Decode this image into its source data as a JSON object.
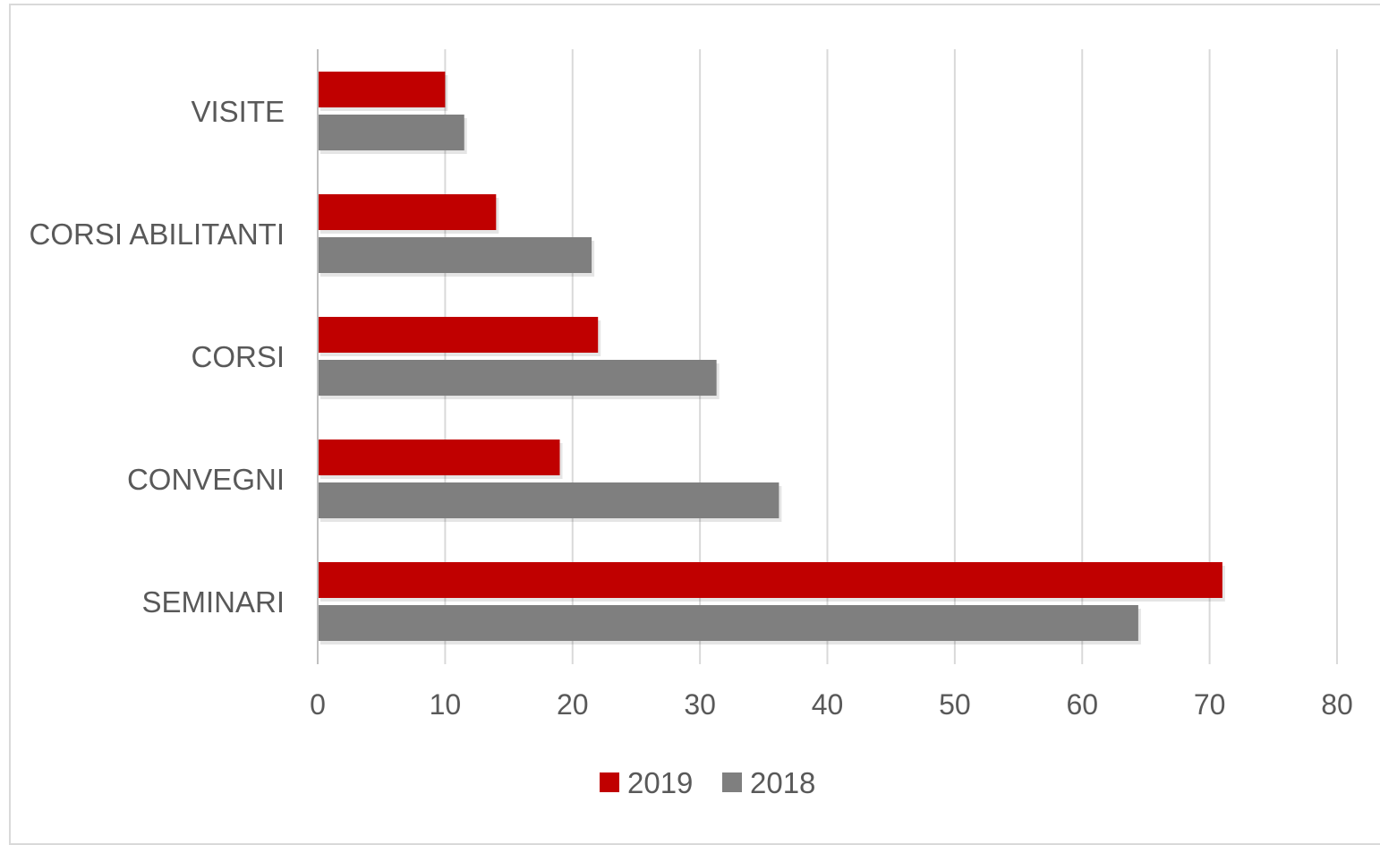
{
  "chart_data": {
    "type": "bar",
    "orientation": "horizontal",
    "categories": [
      "VISITE",
      "CORSI ABILITANTI",
      "CORSI",
      "CONVEGNI",
      "SEMINARI"
    ],
    "series": [
      {
        "name": "2019",
        "color": "#c00000",
        "values": [
          10,
          14,
          22,
          19,
          71
        ]
      },
      {
        "name": "2018",
        "color": "#7f7f7f",
        "values": [
          11.5,
          21.5,
          31.3,
          36.2,
          64.4
        ]
      }
    ],
    "title": "",
    "xlabel": "",
    "ylabel": "",
    "xlim": [
      0,
      80
    ],
    "xticks": [
      "0",
      "10",
      "20",
      "30",
      "40",
      "50",
      "60",
      "70",
      "80"
    ],
    "grid": "vertical",
    "legend_position": "bottom",
    "legend": [
      "2019",
      "2018"
    ]
  }
}
